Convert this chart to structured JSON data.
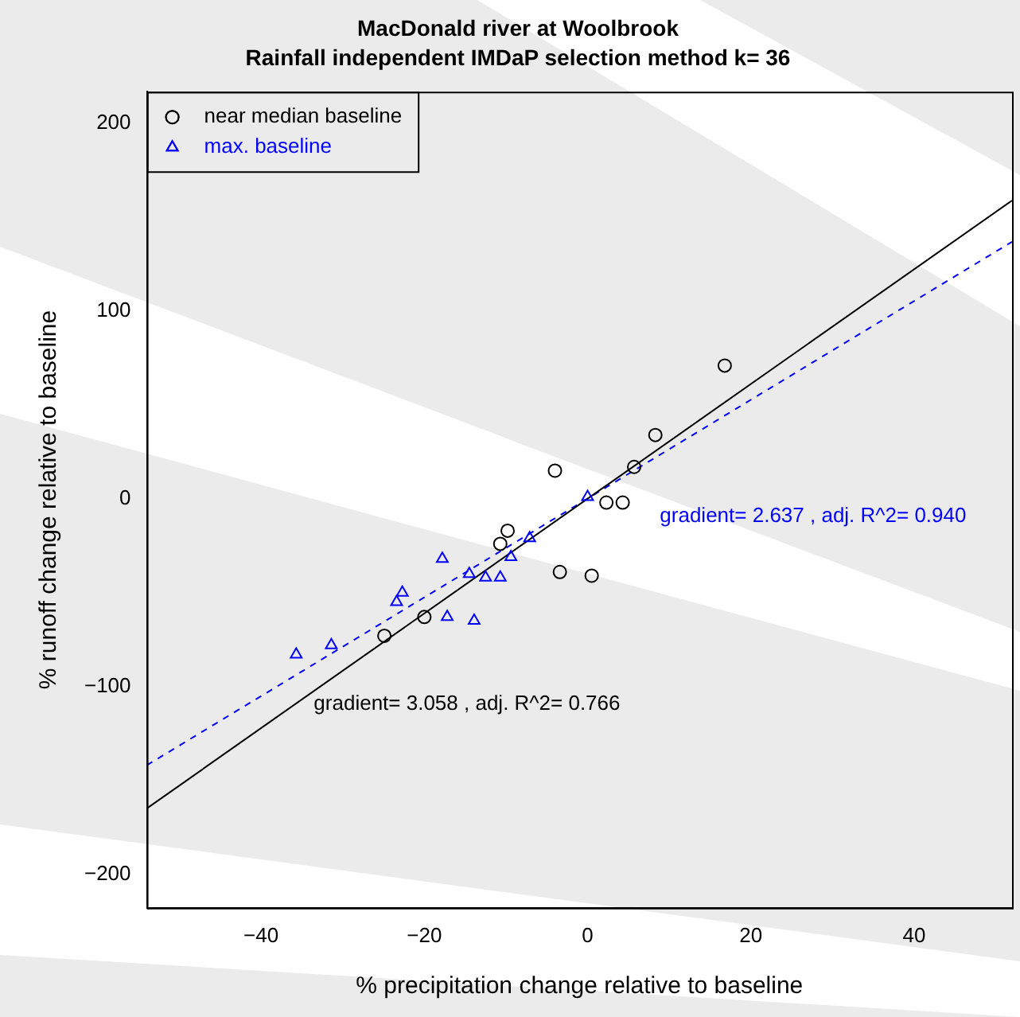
{
  "chart_data": {
    "type": "scatter",
    "title": "MacDonald river at Woolbrook",
    "subtitle": "Rainfall independent IMDaP selection method k= 36",
    "xlabel": "% precipitation change relative to baseline",
    "ylabel": "% runoff change relative to baseline",
    "xlim": [
      -54,
      52
    ],
    "ylim": [
      -218,
      217
    ],
    "xticks": [
      {
        "value": -40,
        "label": "−40"
      },
      {
        "value": -20,
        "label": "−20"
      },
      0,
      20,
      40
    ],
    "yticks": [
      {
        "value": -200,
        "label": "−200"
      },
      {
        "value": -100,
        "label": "−100"
      },
      0,
      100,
      200
    ],
    "grid": false,
    "legend": "top left",
    "series": [
      {
        "name": "near median baseline",
        "color": "#000000",
        "marker": "circle",
        "x": [
          16.8,
          8.3,
          5.7,
          -4.0,
          2.3,
          4.3,
          -3.4,
          0.5,
          -9.8,
          -10.7,
          -20.0,
          -24.9
        ],
        "values": [
          71,
          34,
          17,
          15,
          -2,
          -2,
          -39,
          -41,
          -17,
          -24,
          -63,
          -73
        ]
      },
      {
        "name": "max. baseline",
        "color": "#0000ff",
        "marker": "triangle",
        "x": [
          -35.7,
          -31.4,
          -23.4,
          -22.7,
          -17.8,
          -17.2,
          -13.9,
          -14.5,
          -12.5,
          -10.7,
          -9.4,
          -7.1,
          0.0
        ],
        "values": [
          -83,
          -78,
          -55,
          -50,
          -32,
          -63,
          -65,
          -40,
          -42,
          -42,
          -31,
          -21,
          1
        ]
      },
      {
        "type": "line",
        "color": "#000000",
        "line_style": "solid",
        "x": [
          -54,
          52
        ],
        "values": [
          -165,
          159
        ]
      },
      {
        "type": "line",
        "color": "#0000ff",
        "line_style": "dashed",
        "x": [
          -54,
          52
        ],
        "values": [
          -142,
          137
        ]
      }
    ],
    "annotations": [
      "gradient= 3.058 , adj. R^2= 0.766",
      "gradient= 2.637 , adj. R^2= 0.940"
    ]
  }
}
